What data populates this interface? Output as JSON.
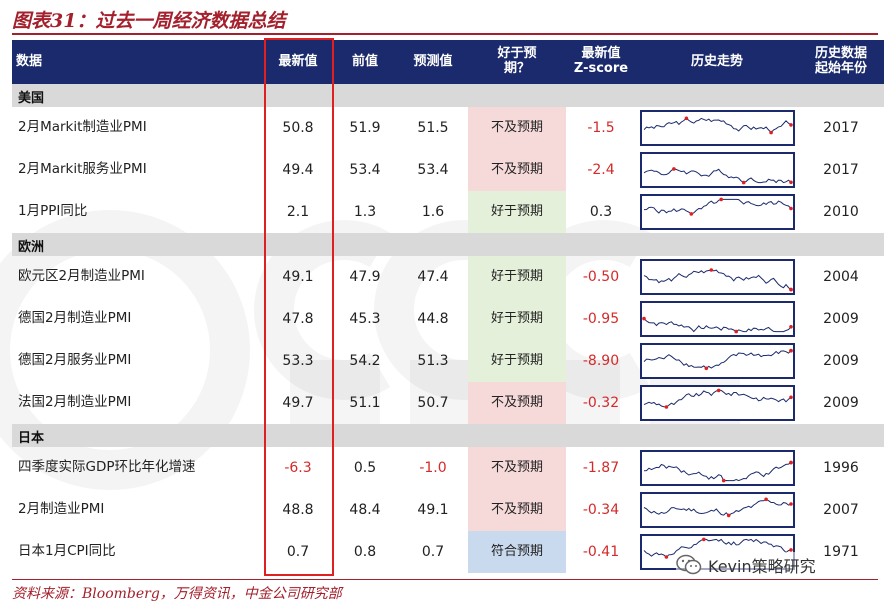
{
  "title": "图表31：过去一周经济数据总结",
  "header": {
    "name": "数据",
    "latest": "最新值",
    "previous": "前值",
    "forecast": "预测值",
    "vs_forecast": "好于预\n期？",
    "zscore": "最新值\nZ-score",
    "trend": "历史走势",
    "start_year": "历史数据\n起始年份"
  },
  "sections": [
    {
      "name": "美国",
      "rows": [
        {
          "name": "2月Markit制造业PMI",
          "latest": "50.8",
          "previous": "51.9",
          "forecast": "51.5",
          "vs": "不及预期",
          "vs_type": "bad",
          "z": "-1.5",
          "year": "2017"
        },
        {
          "name": "2月Markit服务业PMI",
          "latest": "49.4",
          "previous": "53.4",
          "forecast": "53.4",
          "vs": "不及预期",
          "vs_type": "bad",
          "z": "-2.4",
          "year": "2017"
        },
        {
          "name": "1月PPI同比",
          "latest": "2.1",
          "previous": "1.3",
          "forecast": "1.6",
          "vs": "好于预期",
          "vs_type": "good",
          "z": "0.3",
          "year": "2010"
        }
      ]
    },
    {
      "name": "欧洲",
      "rows": [
        {
          "name": "欧元区2月制造业PMI",
          "latest": "49.1",
          "previous": "47.9",
          "forecast": "47.4",
          "vs": "好于预期",
          "vs_type": "good",
          "z": "-0.50",
          "year": "2004"
        },
        {
          "name": "德国2月制造业PMI",
          "latest": "47.8",
          "previous": "45.3",
          "forecast": "44.8",
          "vs": "好于预期",
          "vs_type": "good",
          "z": "-0.95",
          "year": "2009"
        },
        {
          "name": "德国2月服务业PMI",
          "latest": "53.3",
          "previous": "54.2",
          "forecast": "51.3",
          "vs": "好于预期",
          "vs_type": "good",
          "z": "-8.90",
          "year": "2009"
        },
        {
          "name": "法国2月制造业PMI",
          "latest": "49.7",
          "previous": "51.1",
          "forecast": "50.7",
          "vs": "不及预期",
          "vs_type": "bad",
          "z": "-0.32",
          "year": "2009"
        }
      ]
    },
    {
      "name": "日本",
      "rows": [
        {
          "name": "四季度实际GDP环比年化增速",
          "latest": "-6.3",
          "previous": "0.5",
          "forecast": "-1.0",
          "vs": "不及预期",
          "vs_type": "bad",
          "z": "-1.87",
          "year": "1996"
        },
        {
          "name": "2月制造业PMI",
          "latest": "48.8",
          "previous": "48.4",
          "forecast": "49.1",
          "vs": "不及预期",
          "vs_type": "bad",
          "z": "-0.34",
          "year": "2007"
        },
        {
          "name": "日本1月CPI同比",
          "latest": "0.7",
          "previous": "0.8",
          "forecast": "0.7",
          "vs": "符合预期",
          "vs_type": "meet",
          "z": "-0.41",
          "year": "1971"
        }
      ]
    }
  ],
  "source": "资料来源：Bloomberg，万得资讯，中金公司研究部",
  "wechat_label": "Kevin策略研究",
  "colors": {
    "title": "#a3202c",
    "header_bg": "#1a2a6c",
    "section_bg": "#d9d9d9",
    "vs_bad_bg": "#f6d9d9",
    "vs_good_bg": "#e4f0da",
    "vs_meet_bg": "#c9d9ee",
    "negative": "#d42a2a",
    "highlight_border": "#e02020",
    "sparkline": "#1a2a6c",
    "sparkline_marker": "#e02020"
  }
}
